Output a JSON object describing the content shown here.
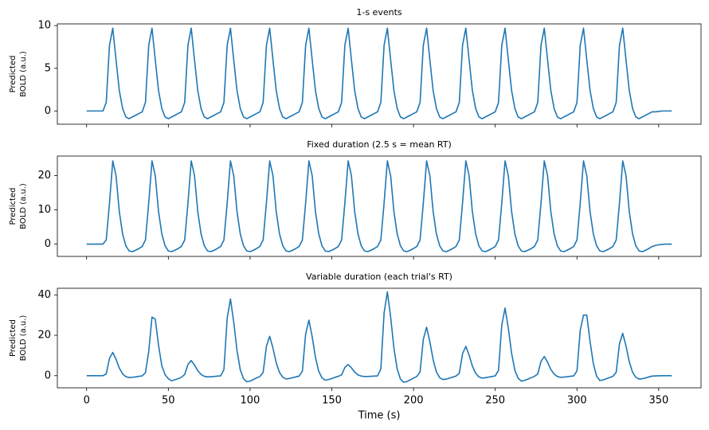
{
  "chart_data": [
    {
      "type": "line",
      "title": "1-s events",
      "ylabel": [
        "Predicted",
        "BOLD (a.u.)"
      ],
      "color": "#1f77b4",
      "xlim": [
        -17.9,
        375.9
      ],
      "xticks": [
        0,
        50,
        100,
        150,
        200,
        250,
        300,
        350
      ],
      "ylim": [
        -1.55,
        10.2
      ],
      "yticks": [
        0,
        5,
        10
      ],
      "x": [
        0,
        2,
        4,
        6,
        8,
        10,
        12,
        14,
        16,
        18,
        20,
        22,
        24,
        26,
        28,
        30,
        32,
        34,
        36,
        38,
        40,
        42,
        44,
        46,
        48,
        50,
        52,
        54,
        56,
        58,
        60,
        62,
        64,
        66,
        68,
        70,
        72,
        74,
        76,
        78,
        80,
        82,
        84,
        86,
        88,
        90,
        92,
        94,
        96,
        98,
        100,
        102,
        104,
        106,
        108,
        110,
        112,
        114,
        116,
        118,
        120,
        122,
        124,
        126,
        128,
        130,
        132,
        134,
        136,
        138,
        140,
        142,
        144,
        146,
        148,
        150,
        152,
        154,
        156,
        158,
        160,
        162,
        164,
        166,
        168,
        170,
        172,
        174,
        176,
        178,
        180,
        182,
        184,
        186,
        188,
        190,
        192,
        194,
        196,
        198,
        200,
        202,
        204,
        206,
        208,
        210,
        212,
        214,
        216,
        218,
        220,
        222,
        224,
        226,
        228,
        230,
        232,
        234,
        236,
        238,
        240,
        242,
        244,
        246,
        248,
        250,
        252,
        254,
        256,
        258,
        260,
        262,
        264,
        266,
        268,
        270,
        272,
        274,
        276,
        278,
        280,
        282,
        284,
        286,
        288,
        290,
        292,
        294,
        296,
        298,
        300,
        302,
        304,
        306,
        308,
        310,
        312,
        314,
        316,
        318,
        320,
        322,
        324,
        326,
        328,
        330,
        332,
        334,
        336,
        338,
        340,
        342,
        344,
        346,
        348,
        350,
        352,
        354,
        356,
        358
      ],
      "values": [
        0,
        0,
        0,
        0,
        0,
        0,
        1,
        7.7,
        9.7,
        6,
        2.4,
        0.3,
        -0.7,
        -0.9,
        -0.7,
        -0.5,
        -0.3,
        -0.1,
        1,
        7.7,
        9.7,
        6,
        2.4,
        0.3,
        -0.7,
        -0.9,
        -0.7,
        -0.5,
        -0.3,
        -0.1,
        1,
        7.7,
        9.7,
        6,
        2.4,
        0.3,
        -0.7,
        -0.9,
        -0.7,
        -0.5,
        -0.3,
        -0.1,
        1,
        7.7,
        9.7,
        6,
        2.4,
        0.3,
        -0.7,
        -0.9,
        -0.7,
        -0.5,
        -0.3,
        -0.1,
        1,
        7.7,
        9.7,
        6,
        2.4,
        0.3,
        -0.7,
        -0.9,
        -0.7,
        -0.5,
        -0.3,
        -0.1,
        1,
        7.7,
        9.7,
        6,
        2.4,
        0.3,
        -0.7,
        -0.9,
        -0.7,
        -0.5,
        -0.3,
        -0.1,
        1,
        7.7,
        9.7,
        6,
        2.4,
        0.3,
        -0.7,
        -0.9,
        -0.7,
        -0.5,
        -0.3,
        -0.1,
        1,
        7.7,
        9.7,
        6,
        2.4,
        0.3,
        -0.7,
        -0.9,
        -0.7,
        -0.5,
        -0.3,
        -0.1,
        1,
        7.7,
        9.7,
        6,
        2.4,
        0.3,
        -0.7,
        -0.9,
        -0.7,
        -0.5,
        -0.3,
        -0.1,
        1,
        7.7,
        9.7,
        6,
        2.4,
        0.3,
        -0.7,
        -0.9,
        -0.7,
        -0.5,
        -0.3,
        -0.1,
        1,
        7.7,
        9.7,
        6,
        2.4,
        0.3,
        -0.7,
        -0.9,
        -0.7,
        -0.5,
        -0.3,
        -0.1,
        1,
        7.7,
        9.7,
        6,
        2.4,
        0.3,
        -0.7,
        -0.9,
        -0.7,
        -0.5,
        -0.3,
        -0.1,
        1,
        7.7,
        9.7,
        6,
        2.4,
        0.3,
        -0.7,
        -0.9,
        -0.7,
        -0.5,
        -0.3,
        -0.1,
        1,
        7.7,
        9.7,
        6,
        2.4,
        0.3,
        -0.7,
        -0.9,
        -0.7,
        -0.5,
        -0.3,
        -0.1,
        -0.1,
        -0.05,
        0,
        0,
        0,
        0
      ]
    },
    {
      "type": "line",
      "title": "Fixed duration (2.5 s = mean RT)",
      "ylabel": [
        "Predicted",
        "BOLD (a.u.)"
      ],
      "color": "#1f77b4",
      "xlim": [
        -17.9,
        375.9
      ],
      "xticks": [
        0,
        50,
        100,
        150,
        200,
        250,
        300,
        350
      ],
      "ylim": [
        -3.6,
        25.7
      ],
      "yticks": [
        0,
        10,
        20
      ],
      "x": [
        0,
        2,
        4,
        6,
        8,
        10,
        12,
        14,
        16,
        18,
        20,
        22,
        24,
        26,
        28,
        30,
        32,
        34,
        36,
        38,
        40,
        42,
        44,
        46,
        48,
        50,
        52,
        54,
        56,
        58,
        60,
        62,
        64,
        66,
        68,
        70,
        72,
        74,
        76,
        78,
        80,
        82,
        84,
        86,
        88,
        90,
        92,
        94,
        96,
        98,
        100,
        102,
        104,
        106,
        108,
        110,
        112,
        114,
        116,
        118,
        120,
        122,
        124,
        126,
        128,
        130,
        132,
        134,
        136,
        138,
        140,
        142,
        144,
        146,
        148,
        150,
        152,
        154,
        156,
        158,
        160,
        162,
        164,
        166,
        168,
        170,
        172,
        174,
        176,
        178,
        180,
        182,
        184,
        186,
        188,
        190,
        192,
        194,
        196,
        198,
        200,
        202,
        204,
        206,
        208,
        210,
        212,
        214,
        216,
        218,
        220,
        222,
        224,
        226,
        228,
        230,
        232,
        234,
        236,
        238,
        240,
        242,
        244,
        246,
        248,
        250,
        252,
        254,
        256,
        258,
        260,
        262,
        264,
        266,
        268,
        270,
        272,
        274,
        276,
        278,
        280,
        282,
        284,
        286,
        288,
        290,
        292,
        294,
        296,
        298,
        300,
        302,
        304,
        306,
        308,
        310,
        312,
        314,
        316,
        318,
        320,
        322,
        324,
        326,
        328,
        330,
        332,
        334,
        336,
        338,
        340,
        342,
        344,
        346,
        348,
        350,
        352,
        354,
        356,
        358
      ],
      "values": [
        0,
        0,
        0,
        0,
        0,
        0,
        1.2,
        12,
        24.3,
        20,
        9.5,
        3,
        -0.5,
        -2,
        -2.2,
        -1.8,
        -1.3,
        -0.7,
        1.2,
        12,
        24.3,
        20,
        9.5,
        3,
        -0.5,
        -2,
        -2.2,
        -1.8,
        -1.3,
        -0.7,
        1.2,
        12,
        24.3,
        20,
        9.5,
        3,
        -0.5,
        -2,
        -2.2,
        -1.8,
        -1.3,
        -0.7,
        1.2,
        12,
        24.3,
        20,
        9.5,
        3,
        -0.5,
        -2,
        -2.2,
        -1.8,
        -1.3,
        -0.7,
        1.2,
        12,
        24.3,
        20,
        9.5,
        3,
        -0.5,
        -2,
        -2.2,
        -1.8,
        -1.3,
        -0.7,
        1.2,
        12,
        24.3,
        20,
        9.5,
        3,
        -0.5,
        -2,
        -2.2,
        -1.8,
        -1.3,
        -0.7,
        1.2,
        12,
        24.3,
        20,
        9.5,
        3,
        -0.5,
        -2,
        -2.2,
        -1.8,
        -1.3,
        -0.7,
        1.2,
        12,
        24.3,
        20,
        9.5,
        3,
        -0.5,
        -2,
        -2.2,
        -1.8,
        -1.3,
        -0.7,
        1.2,
        12,
        24.3,
        20,
        9.5,
        3,
        -0.5,
        -2,
        -2.2,
        -1.8,
        -1.3,
        -0.7,
        1.2,
        12,
        24.3,
        20,
        9.5,
        3,
        -0.5,
        -2,
        -2.2,
        -1.8,
        -1.3,
        -0.7,
        1.2,
        12,
        24.3,
        20,
        9.5,
        3,
        -0.5,
        -2,
        -2.2,
        -1.8,
        -1.3,
        -0.7,
        1.2,
        12,
        24.3,
        20,
        9.5,
        3,
        -0.5,
        -2,
        -2.2,
        -1.8,
        -1.3,
        -0.7,
        1.2,
        12,
        24.3,
        20,
        9.5,
        3,
        -0.5,
        -2,
        -2.2,
        -1.8,
        -1.3,
        -0.7,
        1.2,
        12,
        24.3,
        20,
        9.5,
        3,
        -0.5,
        -2,
        -2.2,
        -1.8,
        -1.3,
        -0.7,
        -0.4,
        -0.2,
        -0.1,
        0,
        0,
        0
      ]
    },
    {
      "type": "line",
      "title": "Variable duration (each trial's RT)",
      "ylabel": [
        "Predicted",
        "BOLD (a.u.)"
      ],
      "xlabel": "Time (s)",
      "color": "#1f77b4",
      "xlim": [
        -17.9,
        375.9
      ],
      "xticks": [
        0,
        50,
        100,
        150,
        200,
        250,
        300,
        350
      ],
      "ylim": [
        -6,
        43.3
      ],
      "yticks": [
        0,
        20,
        40
      ],
      "x": [
        0,
        2,
        4,
        6,
        8,
        10,
        12,
        14,
        16,
        18,
        20,
        22,
        24,
        26,
        28,
        30,
        32,
        34,
        36,
        38,
        40,
        42,
        44,
        46,
        48,
        50,
        52,
        54,
        56,
        58,
        60,
        62,
        64,
        66,
        68,
        70,
        72,
        74,
        76,
        78,
        80,
        82,
        84,
        86,
        88,
        90,
        92,
        94,
        96,
        98,
        100,
        102,
        104,
        106,
        108,
        110,
        112,
        114,
        116,
        118,
        120,
        122,
        124,
        126,
        128,
        130,
        132,
        134,
        136,
        138,
        140,
        142,
        144,
        146,
        148,
        150,
        152,
        154,
        156,
        158,
        160,
        162,
        164,
        166,
        168,
        170,
        172,
        174,
        176,
        178,
        180,
        182,
        184,
        186,
        188,
        190,
        192,
        194,
        196,
        198,
        200,
        202,
        204,
        206,
        208,
        210,
        212,
        214,
        216,
        218,
        220,
        222,
        224,
        226,
        228,
        230,
        232,
        234,
        236,
        238,
        240,
        242,
        244,
        246,
        248,
        250,
        252,
        254,
        256,
        258,
        260,
        262,
        264,
        266,
        268,
        270,
        272,
        274,
        276,
        278,
        280,
        282,
        284,
        286,
        288,
        290,
        292,
        294,
        296,
        298,
        300,
        302,
        304,
        306,
        308,
        310,
        312,
        314,
        316,
        318,
        320,
        322,
        324,
        326,
        328,
        330,
        332,
        334,
        336,
        338,
        340,
        342,
        344,
        346,
        348,
        350,
        352,
        354,
        356,
        358
      ],
      "values": [
        0,
        0,
        0,
        0,
        0,
        0,
        0.9,
        8.6,
        11.5,
        8.1,
        3.8,
        0.9,
        -0.5,
        -0.9,
        -0.8,
        -0.6,
        -0.3,
        -0.1,
        1.5,
        12,
        29,
        28,
        15,
        5,
        0.5,
        -1.5,
        -2.5,
        -2,
        -1.5,
        -0.8,
        0.6,
        5.6,
        7.5,
        5.3,
        2.5,
        0.6,
        -0.3,
        -0.6,
        -0.5,
        -0.4,
        -0.2,
        -0.1,
        3,
        28.5,
        38,
        26.6,
        12.5,
        3,
        -1.5,
        -3,
        -2.7,
        -1.9,
        -1.1,
        -0.4,
        1.6,
        14.6,
        19.5,
        13.7,
        6.4,
        1.6,
        -0.8,
        -1.6,
        -1.4,
        -1,
        -0.6,
        -0.2,
        2.2,
        20.6,
        27.5,
        19.3,
        9.1,
        2.2,
        -1.1,
        -2.2,
        -1.9,
        -1.4,
        -0.8,
        -0.3,
        0.4,
        4.1,
        5.5,
        3.9,
        1.8,
        0.4,
        -0.2,
        -0.4,
        -0.4,
        -0.3,
        -0.2,
        -0.1,
        3.3,
        31.1,
        41.5,
        29.1,
        13.7,
        3.3,
        -1.7,
        -3.3,
        -2.9,
        -2.1,
        -1.2,
        -0.4,
        1.9,
        18,
        24,
        16.8,
        7.9,
        1.9,
        -1,
        -1.9,
        -1.7,
        -1.2,
        -0.7,
        -0.2,
        1.2,
        10.9,
        14.5,
        10.2,
        4.8,
        1.2,
        -0.6,
        -1.2,
        -1,
        -0.7,
        -0.4,
        -0.1,
        2.7,
        25.1,
        33.5,
        23.5,
        11.1,
        2.7,
        -1.3,
        -2.7,
        -2.3,
        -1.7,
        -1,
        -0.3,
        0.8,
        7.1,
        9.5,
        6.7,
        3.1,
        0.8,
        -0.4,
        -0.8,
        -0.7,
        -0.5,
        -0.3,
        -0.1,
        2.4,
        22.5,
        30,
        30,
        17,
        6,
        -0.2,
        -2.4,
        -2.1,
        -1.5,
        -0.9,
        -0.3,
        1.7,
        15.8,
        21,
        14.7,
        6.9,
        1.7,
        -0.8,
        -1.7,
        -1.5,
        -1.1,
        -0.6,
        -0.2,
        -0.1,
        -0.05,
        0,
        0,
        0,
        0
      ]
    }
  ]
}
